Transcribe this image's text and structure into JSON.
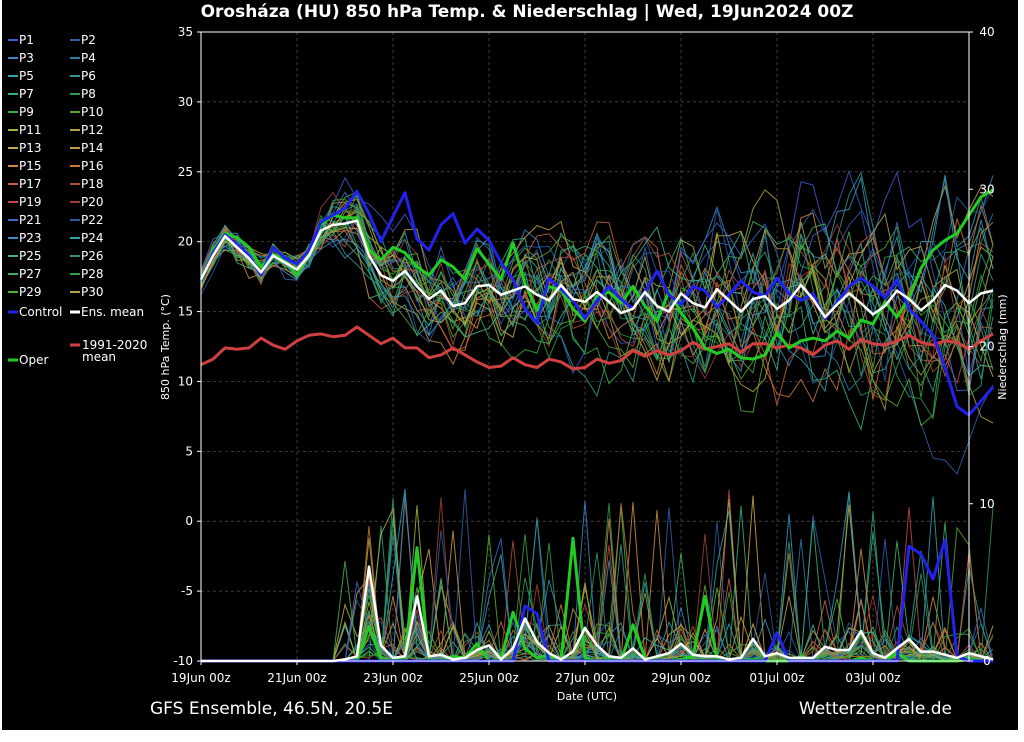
{
  "chart_data": {
    "type": "line",
    "title": "Orosháza  (HU)  850 hPa Temp. & Niederschlag | Wed, 19Jun2024 00Z",
    "xlabel": "Date (UTC)",
    "ylabel": "850 hPa Temp. (°C)",
    "y2label": "Niederschlag (mm)",
    "ylim": [
      -10,
      35
    ],
    "y2lim": [
      0,
      40
    ],
    "yticks": [
      "35",
      "30",
      "25",
      "20",
      "15",
      "10",
      "5",
      "0",
      "-5",
      "-10"
    ],
    "y2ticks": [
      "40",
      "30",
      "20",
      "10",
      "0"
    ],
    "xticks": [
      "19Jun 00z",
      "21Jun 00z",
      "23Jun 00z",
      "25Jun 00z",
      "27Jun 00z",
      "29Jun 00z",
      "01Jul 00z",
      "03Jul 00z"
    ],
    "x_hours_range": [
      0,
      384
    ],
    "step_hours": 6,
    "grid": true,
    "legend": [
      {
        "label": "P1",
        "color": "#3c5ad0"
      },
      {
        "label": "P2",
        "color": "#2f5fb0"
      },
      {
        "label": "P3",
        "color": "#3a86c8"
      },
      {
        "label": "P4",
        "color": "#2c78a8"
      },
      {
        "label": "P5",
        "color": "#2fa0b4"
      },
      {
        "label": "P6",
        "color": "#2e9a8a"
      },
      {
        "label": "P7",
        "color": "#32b07a"
      },
      {
        "label": "P8",
        "color": "#2e9a4a"
      },
      {
        "label": "P9",
        "color": "#3ab040"
      },
      {
        "label": "P10",
        "color": "#5aa030"
      },
      {
        "label": "P11",
        "color": "#a8b040"
      },
      {
        "label": "P12",
        "color": "#b0a040"
      },
      {
        "label": "P13",
        "color": "#c8a848"
      },
      {
        "label": "P14",
        "color": "#c89a40"
      },
      {
        "label": "P15",
        "color": "#d08a40"
      },
      {
        "label": "P16",
        "color": "#c87830"
      },
      {
        "label": "P17",
        "color": "#c86040"
      },
      {
        "label": "P18",
        "color": "#b05030"
      },
      {
        "label": "P19",
        "color": "#c04848"
      },
      {
        "label": "P20",
        "color": "#a04030"
      },
      {
        "label": "P21",
        "color": "#3a6ac8"
      },
      {
        "label": "P22",
        "color": "#2a5aa0"
      },
      {
        "label": "P23",
        "color": "#3a90c0"
      },
      {
        "label": "P24",
        "color": "#30a0a0"
      },
      {
        "label": "P25",
        "color": "#40b090"
      },
      {
        "label": "P26",
        "color": "#2e9a60"
      },
      {
        "label": "P27",
        "color": "#40b060"
      },
      {
        "label": "P28",
        "color": "#30a040"
      },
      {
        "label": "P29",
        "color": "#50b030"
      },
      {
        "label": "P30",
        "color": "#b0a848"
      }
    ],
    "legend_special": [
      {
        "label": "Control",
        "color": "#2222ee"
      },
      {
        "label": "Ens. mean",
        "color": "#ffffff"
      },
      {
        "label": "1991-2020 mean",
        "color": "#d04040"
      },
      {
        "label": "Oper",
        "color": "#22cc22"
      }
    ],
    "series": [
      {
        "name": "Ens. mean",
        "color": "#ffffff",
        "axis": "temp",
        "values": [
          17.3,
          19.0,
          20.4,
          19.6,
          18.8,
          17.8,
          19.0,
          18.5,
          18.0,
          19.0,
          20.8,
          21.2,
          21.3,
          21.5,
          19.0,
          17.6,
          17.2,
          17.9,
          16.8,
          15.9,
          16.5,
          15.4,
          15.6,
          16.8,
          16.9,
          16.2,
          16.5,
          16.8,
          16.2,
          15.8,
          16.9,
          15.9,
          15.7,
          16.4,
          15.7,
          14.9,
          15.2,
          16.4,
          15.4,
          15.0,
          16.3,
          15.6,
          15.3,
          16.6,
          15.8,
          15.0,
          15.9,
          16.1,
          15.2,
          15.8,
          16.9,
          15.9,
          14.6,
          15.5,
          16.3,
          15.6,
          14.8,
          15.4,
          16.5,
          15.9,
          15.1,
          15.8,
          16.9,
          16.5,
          15.6,
          16.3,
          16.5
        ]
      },
      {
        "name": "Control",
        "color": "#2222ee",
        "axis": "temp",
        "values": [
          17.2,
          19.2,
          20.5,
          19.8,
          19.0,
          17.6,
          19.6,
          18.8,
          18.4,
          19.4,
          21.4,
          21.9,
          22.4,
          23.6,
          22.0,
          20.0,
          21.8,
          23.5,
          20.2,
          19.4,
          21.2,
          22.0,
          19.9,
          20.9,
          20.1,
          18.5,
          17.3,
          15.2,
          14.2,
          17.4,
          16.6,
          15.8,
          14.5,
          15.8,
          16.8,
          15.9,
          15.2,
          16.4,
          17.9,
          16.2,
          15.5,
          16.8,
          16.5,
          15.3,
          16.2,
          17.2,
          16.4,
          16.1,
          17.4,
          16.3,
          15.8,
          16.3,
          14.5,
          15.6,
          16.8,
          17.4,
          16.8,
          16.0,
          17.3,
          15.2,
          14.3,
          13.3,
          11.0,
          8.2,
          7.6,
          8.6,
          9.6
        ]
      },
      {
        "name": "Oper",
        "color": "#22cc22",
        "axis": "temp",
        "values": [
          17.2,
          19.4,
          20.6,
          20.3,
          19.6,
          18.2,
          19.1,
          18.7,
          17.6,
          19.2,
          21.2,
          21.9,
          21.7,
          21.7,
          19.4,
          18.7,
          19.6,
          19.2,
          18.2,
          17.6,
          18.7,
          18.2,
          17.3,
          19.5,
          18.4,
          17.3,
          19.9,
          17.0,
          15.1,
          16.8,
          16.5,
          15.2,
          14.3,
          16.1,
          16.4,
          15.6,
          16.8,
          15.4,
          14.3,
          16.5,
          14.9,
          13.8,
          12.4,
          12.0,
          12.3,
          11.7,
          11.6,
          11.9,
          13.5,
          12.4,
          12.9,
          13.1,
          12.9,
          13.6,
          13.1,
          14.4,
          14.1,
          15.7,
          14.6,
          16.0,
          18.1,
          19.4,
          20.1,
          20.6,
          21.9,
          23.2,
          23.7
        ]
      },
      {
        "name": "1991-2020 mean",
        "color": "#d04040",
        "axis": "temp",
        "values": [
          11.2,
          11.6,
          12.4,
          12.3,
          12.4,
          13.1,
          12.6,
          12.3,
          12.9,
          13.3,
          13.4,
          13.2,
          13.3,
          13.9,
          13.3,
          12.7,
          13.1,
          12.4,
          12.4,
          11.7,
          11.9,
          12.4,
          11.9,
          11.4,
          11.0,
          11.1,
          11.7,
          11.2,
          11.0,
          11.6,
          11.4,
          10.9,
          11.0,
          11.6,
          11.3,
          11.5,
          12.2,
          11.8,
          12.2,
          11.9,
          12.2,
          12.8,
          12.3,
          12.5,
          12.7,
          12.1,
          12.7,
          12.7,
          12.4,
          12.6,
          12.4,
          11.9,
          12.6,
          12.9,
          12.3,
          13.0,
          12.7,
          12.6,
          12.9,
          13.3,
          12.8,
          12.6,
          12.9,
          12.8,
          12.3,
          12.9,
          13.4
        ]
      },
      {
        "name": "Ens. mean precip",
        "color": "#ffffff",
        "axis": "precip",
        "values": [
          0,
          0,
          0,
          0,
          0,
          0,
          0,
          0,
          0,
          0,
          0,
          0,
          0.1,
          0.3,
          6.0,
          1.0,
          0.2,
          0.3,
          4.1,
          0.3,
          0.4,
          0.1,
          0.2,
          0.7,
          1.0,
          0.1,
          0.8,
          2.7,
          1.2,
          0.5,
          0.1,
          0.6,
          2.1,
          1.0,
          0.3,
          0.2,
          0.8,
          0.1,
          0.3,
          0.5,
          1.1,
          0.4,
          0.3,
          0.3,
          0.1,
          0.2,
          1.4,
          0.3,
          0.5,
          0.2,
          0.2,
          0.2,
          0.9,
          0.7,
          0.7,
          1.9,
          0.5,
          0.2,
          0.8,
          1.4,
          0.6,
          0.6,
          0.4,
          0.2,
          0.5,
          0.3,
          0.1
        ]
      },
      {
        "name": "Control precip",
        "color": "#2222ee",
        "axis": "precip",
        "values": [
          0,
          0,
          0,
          0,
          0,
          0,
          0,
          0,
          0,
          0,
          0,
          0,
          0,
          0,
          0,
          0,
          0,
          0,
          0,
          0,
          0,
          0,
          0,
          0,
          0,
          0,
          0,
          3.5,
          3.0,
          0,
          0,
          0,
          0,
          0,
          0,
          0,
          0,
          0,
          0,
          0,
          0,
          0,
          0,
          0,
          0,
          0,
          0,
          0,
          1.8,
          0,
          0,
          0,
          0,
          0,
          0,
          0,
          0,
          0,
          0,
          7.3,
          6.8,
          5.2,
          7.7,
          0.3,
          0,
          0,
          0
        ]
      },
      {
        "name": "Oper precip",
        "color": "#22cc22",
        "axis": "precip",
        "values": [
          0,
          0,
          0,
          0,
          0,
          0,
          0,
          0,
          0,
          0,
          0,
          0,
          0,
          0,
          2.2,
          0.1,
          0,
          0.3,
          7.2,
          0.1,
          0,
          0.3,
          0.2,
          1.1,
          0,
          0.1,
          3.1,
          0.8,
          0.2,
          0.4,
          0,
          7.8,
          0.2,
          0,
          0.1,
          0,
          2.3,
          0.2,
          0,
          0,
          0.1,
          0.3,
          4.1,
          0.2,
          0,
          0,
          0.1,
          0,
          0,
          0,
          0.3,
          0,
          0,
          0,
          0,
          0.2,
          0,
          0,
          0.5,
          0,
          0,
          0,
          0,
          0,
          0.1,
          0,
          0
        ]
      }
    ]
  },
  "footer": {
    "left": "GFS Ensemble, 46.5N, 20.5E",
    "right": "Wetterzentrale.de"
  }
}
